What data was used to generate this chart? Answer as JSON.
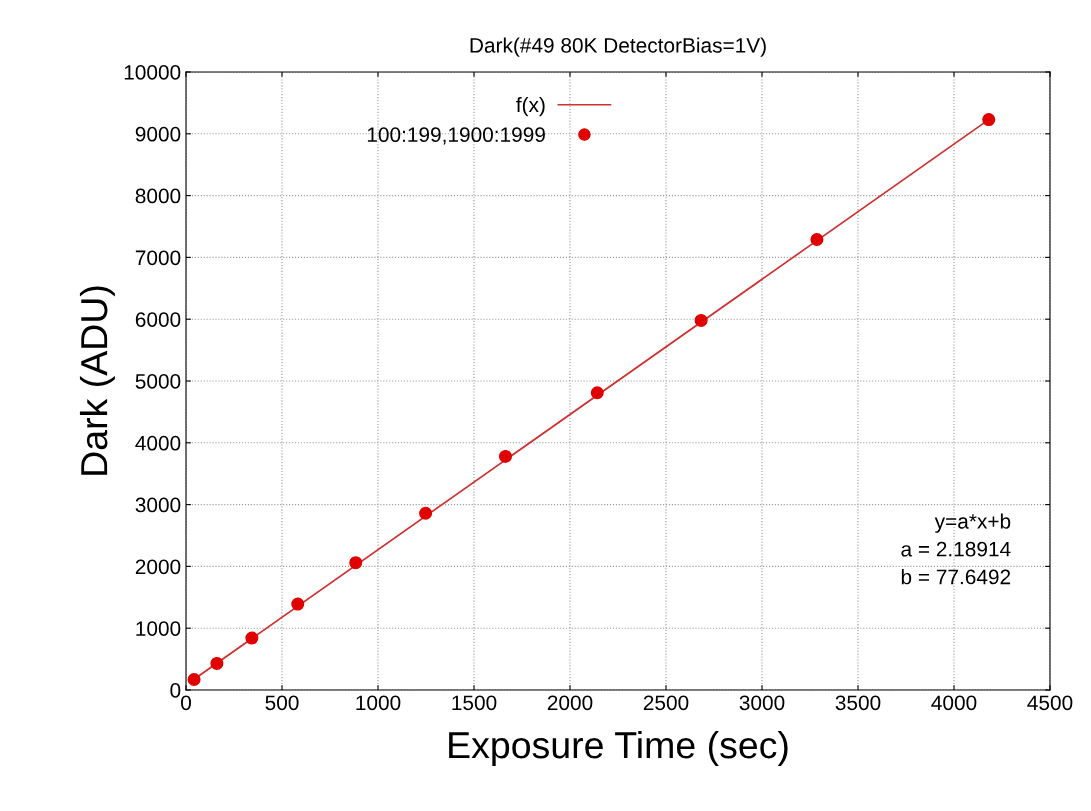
{
  "chart_data": {
    "type": "scatter",
    "title": "Dark(#49 80K DetectorBias=1V)",
    "xlabel": "Exposure Time (sec)",
    "ylabel": "Dark (ADU)",
    "series": [
      {
        "name": "f(x)",
        "type": "line",
        "color": "#d03030",
        "x": [
          40,
          4181
        ],
        "values": [
          170,
          9230
        ],
        "marker": "none"
      },
      {
        "name": "100:199,1900:1999",
        "color": "#e00000",
        "x": [
          42,
          161,
          343,
          582,
          884,
          1248,
          1664,
          2142,
          2683,
          3286,
          4181
        ],
        "values": [
          170,
          430,
          840,
          1390,
          2060,
          2860,
          3780,
          4810,
          5980,
          7290,
          9230
        ],
        "marker": "circle"
      }
    ],
    "xlim": [
      0,
      4500
    ],
    "xticks": [
      0,
      500,
      1000,
      1500,
      2000,
      2500,
      3000,
      3500,
      4000,
      4500
    ],
    "ylim": [
      0,
      10000
    ],
    "yticks": [
      0,
      1000,
      2000,
      3000,
      4000,
      5000,
      6000,
      7000,
      8000,
      9000,
      10000
    ],
    "grid": true,
    "legend": "top center",
    "annotations": [
      "y=a*x+b",
      "a = 2.18914",
      "b = 77.6492"
    ]
  }
}
